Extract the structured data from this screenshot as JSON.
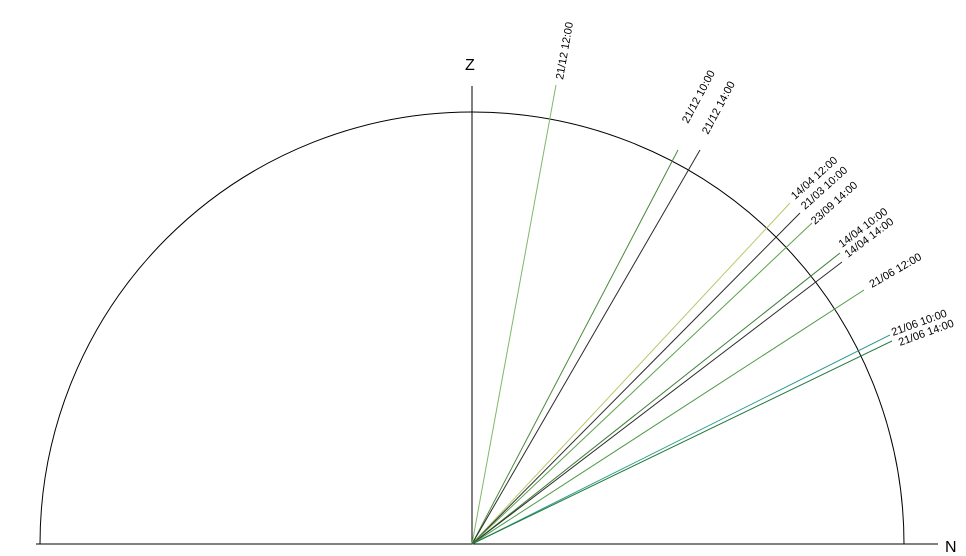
{
  "axes": {
    "vertical_label": "Z",
    "horizontal_label": "N"
  },
  "rays": [
    {
      "label": "21/12 12:00",
      "color": "#7fb86a"
    },
    {
      "label": "21/12 10:00",
      "color": "#4a8a3c"
    },
    {
      "label": "21/12 14:00",
      "color": "#2b2b2b"
    },
    {
      "label": "14/04 12:00",
      "color": "#b7c96a"
    },
    {
      "label": "21/03 10:00",
      "color": "#2b2b2b"
    },
    {
      "label": "23/09 14:00",
      "color": "#5aa24a"
    },
    {
      "label": "14/04 10:00",
      "color": "#3f7f3a"
    },
    {
      "label": "14/04 14:00",
      "color": "#2b2b2b"
    },
    {
      "label": "21/06 12:00",
      "color": "#4f9a48"
    },
    {
      "label": "21/06 10:00",
      "color": "#2a9a8a"
    },
    {
      "label": "21/06 14:00",
      "color": "#1f7a3a"
    }
  ]
}
